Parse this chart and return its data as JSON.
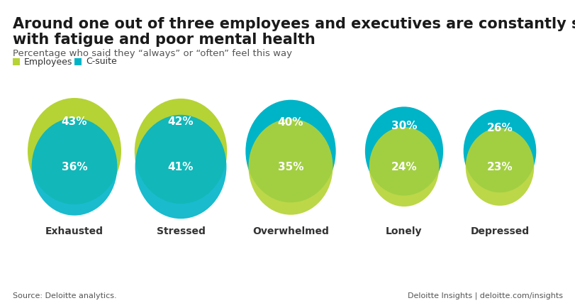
{
  "title_line1": "Around one out of three employees and executives are constantly struggling",
  "title_line2": "with fatigue and poor mental health",
  "subtitle": "Percentage who said they “always” or “often” feel this way",
  "source_left": "Source: Deloitte analytics.",
  "source_right": "Deloitte Insights | deloitte.com/insights",
  "legend": [
    "Employees",
    "C-suite"
  ],
  "categories": [
    "Exhausted",
    "Stressed",
    "Overwhelmed",
    "Lonely",
    "Depressed"
  ],
  "employee_pct": [
    43,
    42,
    35,
    24,
    23
  ],
  "csuite_pct": [
    36,
    41,
    40,
    30,
    26
  ],
  "color_green": "#b5d334",
  "color_cyan": "#00b4c8",
  "bg_color": "#ffffff",
  "title_fontsize": 15,
  "subtitle_fontsize": 10,
  "label_fontsize": 11,
  "category_fontsize": 10
}
